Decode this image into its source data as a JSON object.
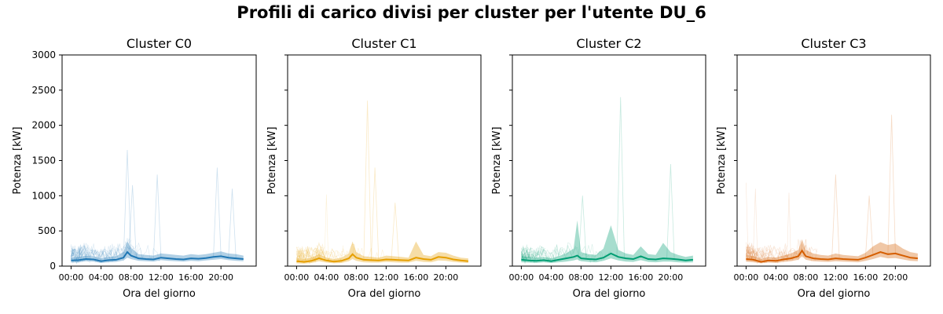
{
  "title": "Profili di carico divisi per cluster per l'utente DU_6",
  "chart_data": [
    {
      "type": "line",
      "title": "Cluster C0",
      "color": "#1f77b4",
      "xlabel": "Ora del giorno",
      "ylabel": "Potenza [kW]",
      "x_ticks": [
        "00:00",
        "04:00",
        "08:00",
        "12:00",
        "16:00",
        "20:00"
      ],
      "y_ticks": [
        0,
        500,
        1000,
        1500,
        2000,
        2500,
        3000
      ],
      "ylim": [
        0,
        3000
      ],
      "xlim_hours": [
        -1.2,
        24.7
      ],
      "grid": false,
      "series": [
        {
          "role": "mean",
          "x_hours": [
            0,
            1,
            2,
            3,
            4,
            5,
            6,
            7,
            7.5,
            8,
            9,
            10,
            11,
            12,
            13,
            14,
            15,
            16,
            17,
            18,
            19,
            20,
            21,
            22,
            23
          ],
          "values": [
            80,
            85,
            100,
            95,
            70,
            85,
            90,
            120,
            200,
            150,
            110,
            100,
            95,
            120,
            110,
            100,
            95,
            110,
            105,
            115,
            130,
            140,
            120,
            110,
            100
          ]
        },
        {
          "role": "band_lower",
          "values": [
            50,
            55,
            70,
            65,
            45,
            55,
            60,
            80,
            120,
            100,
            75,
            70,
            65,
            85,
            75,
            70,
            65,
            75,
            70,
            80,
            90,
            100,
            85,
            75,
            70
          ]
        },
        {
          "role": "band_upper",
          "values": [
            120,
            130,
            150,
            140,
            110,
            130,
            140,
            200,
            350,
            260,
            170,
            160,
            150,
            180,
            170,
            160,
            150,
            170,
            160,
            170,
            190,
            210,
            180,
            170,
            150
          ]
        }
      ],
      "peaks_approx": [
        1650,
        1300,
        1400,
        1150,
        1100
      ],
      "note_peak_hours": [
        7.5,
        11.5,
        19.5,
        8.2,
        21.5
      ]
    },
    {
      "type": "line",
      "title": "Cluster C1",
      "color": "#e69f00",
      "xlabel": "Ora del giorno",
      "ylabel": "Potenza [kW]",
      "x_ticks": [
        "00:00",
        "04:00",
        "08:00",
        "12:00",
        "16:00",
        "20:00"
      ],
      "y_ticks": [
        0,
        500,
        1000,
        1500,
        2000,
        2500,
        3000
      ],
      "ylim": [
        0,
        3000
      ],
      "xlim_hours": [
        -1.2,
        24.7
      ],
      "grid": false,
      "series": [
        {
          "role": "mean",
          "x_hours": [
            0,
            1,
            2,
            3,
            4,
            5,
            6,
            7,
            7.5,
            8,
            9,
            10,
            11,
            12,
            13,
            14,
            15,
            16,
            17,
            18,
            19,
            20,
            21,
            22,
            23
          ],
          "values": [
            70,
            60,
            75,
            110,
            80,
            65,
            75,
            110,
            170,
            120,
            90,
            85,
            80,
            95,
            90,
            85,
            80,
            120,
            100,
            90,
            130,
            120,
            95,
            80,
            70
          ]
        },
        {
          "role": "band_lower",
          "values": [
            40,
            35,
            45,
            70,
            50,
            40,
            45,
            70,
            100,
            75,
            55,
            50,
            50,
            60,
            55,
            50,
            50,
            75,
            60,
            55,
            80,
            75,
            60,
            50,
            45
          ]
        },
        {
          "role": "band_upper",
          "values": [
            110,
            100,
            120,
            170,
            120,
            100,
            120,
            180,
            350,
            200,
            140,
            130,
            120,
            150,
            140,
            130,
            120,
            350,
            160,
            140,
            200,
            190,
            150,
            120,
            110
          ]
        }
      ],
      "peaks_approx": [
        2350,
        1400,
        900
      ],
      "note_peak_hours": [
        9.5,
        10.5,
        13.2
      ]
    },
    {
      "type": "line",
      "title": "Cluster C2",
      "color": "#009e73",
      "xlabel": "Ora del giorno",
      "ylabel": "Potenza [kW]",
      "x_ticks": [
        "00:00",
        "04:00",
        "08:00",
        "12:00",
        "16:00",
        "20:00"
      ],
      "y_ticks": [
        0,
        500,
        1000,
        1500,
        2000,
        2500,
        3000
      ],
      "ylim": [
        0,
        3000
      ],
      "xlim_hours": [
        -1.2,
        24.7
      ],
      "grid": false,
      "series": [
        {
          "role": "mean",
          "x_hours": [
            0,
            1,
            2,
            3,
            4,
            5,
            6,
            7,
            7.5,
            8,
            9,
            10,
            11,
            12,
            13,
            14,
            15,
            16,
            17,
            18,
            19,
            20,
            21,
            22,
            23
          ],
          "values": [
            90,
            80,
            75,
            85,
            70,
            90,
            110,
            130,
            150,
            110,
            100,
            95,
            120,
            180,
            130,
            110,
            100,
            140,
            100,
            95,
            110,
            105,
            95,
            80,
            90
          ]
        },
        {
          "role": "band_lower",
          "values": [
            55,
            50,
            45,
            55,
            45,
            55,
            65,
            80,
            95,
            70,
            60,
            55,
            75,
            110,
            80,
            65,
            60,
            85,
            60,
            55,
            65,
            65,
            55,
            50,
            55
          ]
        },
        {
          "role": "band_upper",
          "values": [
            150,
            130,
            120,
            130,
            110,
            140,
            180,
            250,
            650,
            200,
            170,
            160,
            250,
            580,
            230,
            180,
            160,
            280,
            170,
            160,
            330,
            200,
            160,
            130,
            150
          ]
        }
      ],
      "peaks_approx": [
        2400,
        1450,
        1000
      ],
      "note_peak_hours": [
        13.3,
        20.0,
        8.2
      ]
    },
    {
      "type": "line",
      "title": "Cluster C3",
      "color": "#d55e00",
      "xlabel": "Ora del giorno",
      "ylabel": "Potenza [kW]",
      "x_ticks": [
        "00:00",
        "04:00",
        "08:00",
        "12:00",
        "16:00",
        "20:00"
      ],
      "y_ticks": [
        0,
        500,
        1000,
        1500,
        2000,
        2500,
        3000
      ],
      "ylim": [
        0,
        3000
      ],
      "xlim_hours": [
        -1.2,
        24.7
      ],
      "grid": false,
      "series": [
        {
          "role": "mean",
          "x_hours": [
            0,
            1,
            2,
            3,
            4,
            5,
            6,
            7,
            7.5,
            8,
            9,
            10,
            11,
            12,
            13,
            14,
            15,
            16,
            17,
            18,
            19,
            20,
            21,
            22,
            23
          ],
          "values": [
            100,
            90,
            60,
            80,
            75,
            95,
            110,
            140,
            220,
            140,
            110,
            100,
            95,
            110,
            100,
            95,
            90,
            120,
            160,
            200,
            170,
            180,
            150,
            120,
            110
          ]
        },
        {
          "role": "band_lower",
          "values": [
            65,
            55,
            40,
            50,
            45,
            60,
            70,
            90,
            140,
            90,
            70,
            65,
            60,
            70,
            65,
            60,
            55,
            75,
            100,
            130,
            110,
            115,
            95,
            75,
            70
          ]
        },
        {
          "role": "band_upper",
          "values": [
            160,
            140,
            100,
            130,
            120,
            150,
            180,
            230,
            380,
            230,
            180,
            160,
            150,
            180,
            160,
            150,
            140,
            190,
            280,
            340,
            300,
            320,
            250,
            200,
            180
          ]
        }
      ],
      "peaks_approx": [
        2150,
        1300,
        1000
      ],
      "note_peak_hours": [
        19.5,
        12.0,
        16.5
      ]
    }
  ]
}
